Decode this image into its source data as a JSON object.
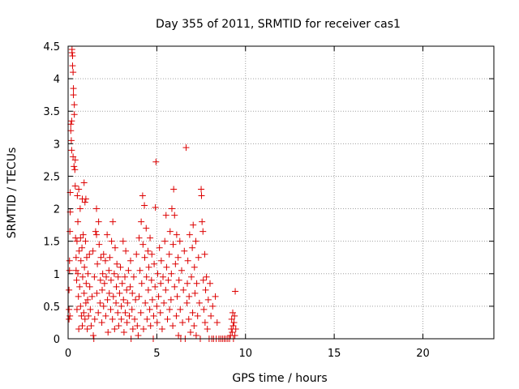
{
  "chart_data": {
    "type": "scatter",
    "title": "Day 355 of 2011, SRMTID for receiver cas1",
    "xlabel": "GPS time / hours",
    "ylabel": "SRMTID / TECUs",
    "xlim": [
      0,
      24
    ],
    "ylim": [
      0,
      4.5
    ],
    "grid": true,
    "marker": "+",
    "colors": {
      "marker": "#dd0000",
      "grid": "#a0a0a0",
      "axes": "#000000"
    },
    "x_ticks": [
      "0",
      "5",
      "10",
      "15",
      "20"
    ],
    "y_ticks": [
      "0",
      "0.5",
      "1",
      "1.5",
      "2",
      "2.5",
      "3",
      "3.5",
      "4",
      "4.5"
    ],
    "series": [
      {
        "name": "SRMTID",
        "points": [
          [
            0.05,
            0.3
          ],
          [
            0.05,
            0.45
          ],
          [
            0.05,
            0.75
          ],
          [
            0.08,
            1.05
          ],
          [
            0.08,
            1.2
          ],
          [
            0.1,
            0.35
          ],
          [
            0.1,
            1.65
          ],
          [
            0.12,
            1.95
          ],
          [
            0.12,
            2.25
          ],
          [
            0.15,
            3.3
          ],
          [
            0.15,
            3.2
          ],
          [
            0.18,
            3.05
          ],
          [
            0.2,
            3.35
          ],
          [
            0.2,
            2.9
          ],
          [
            0.22,
            4.45
          ],
          [
            0.22,
            4.4
          ],
          [
            0.25,
            4.35
          ],
          [
            0.25,
            4.2
          ],
          [
            0.28,
            4.1
          ],
          [
            0.28,
            2.8
          ],
          [
            0.3,
            3.85
          ],
          [
            0.3,
            3.75
          ],
          [
            0.33,
            2.65
          ],
          [
            0.35,
            3.6
          ],
          [
            0.35,
            3.45
          ],
          [
            0.38,
            2.6
          ],
          [
            0.4,
            2.75
          ],
          [
            0.4,
            2.35
          ],
          [
            0.42,
            1.55
          ],
          [
            0.45,
            1.25
          ],
          [
            0.45,
            1.05
          ],
          [
            0.48,
            0.9
          ],
          [
            0.5,
            1.5
          ],
          [
            0.5,
            0.45
          ],
          [
            0.52,
            2.2
          ],
          [
            0.55,
            1.8
          ],
          [
            0.55,
            1.0
          ],
          [
            0.58,
            0.65
          ],
          [
            0.6,
            2.3
          ],
          [
            0.6,
            0.15
          ],
          [
            0.62,
            1.35
          ],
          [
            0.65,
            0.8
          ],
          [
            0.68,
            2.0
          ],
          [
            0.7,
            1.55
          ],
          [
            0.7,
            0.5
          ],
          [
            0.72,
            1.2
          ],
          [
            0.75,
            0.35
          ],
          [
            0.78,
            1.4
          ],
          [
            0.8,
            2.15
          ],
          [
            0.8,
            0.2
          ],
          [
            0.82,
            0.95
          ],
          [
            0.85,
            1.6
          ],
          [
            0.88,
            0.4
          ],
          [
            0.9,
            2.4
          ],
          [
            0.9,
            0.7
          ],
          [
            0.92,
            1.1
          ],
          [
            0.95,
            2.1
          ],
          [
            0.95,
            0.3
          ],
          [
            0.98,
            1.5
          ],
          [
            1.0,
            0.55
          ],
          [
            1.0,
            2.15
          ],
          [
            1.02,
            0.85
          ],
          [
            1.05,
            1.25
          ],
          [
            1.08,
            0.15
          ],
          [
            1.1,
            0.6
          ],
          [
            1.12,
            1.0
          ],
          [
            1.15,
            0.35
          ],
          [
            1.2,
            1.3
          ],
          [
            1.22,
            0.8
          ],
          [
            1.25,
            0.45
          ],
          [
            1.3,
            0.2
          ],
          [
            1.35,
            0.65
          ],
          [
            1.4,
            1.35
          ],
          [
            1.42,
            0.05
          ],
          [
            1.45,
            0.0
          ],
          [
            1.48,
            0.95
          ],
          [
            1.5,
            0.3
          ],
          [
            1.55,
            1.65
          ],
          [
            1.6,
            1.6
          ],
          [
            1.6,
            2.0
          ],
          [
            1.62,
            0.7
          ],
          [
            1.65,
            1.15
          ],
          [
            1.7,
            0.4
          ],
          [
            1.72,
            1.8
          ],
          [
            1.75,
            1.45
          ],
          [
            1.8,
            0.55
          ],
          [
            1.82,
            0.9
          ],
          [
            1.85,
            1.25
          ],
          [
            1.9,
            0.25
          ],
          [
            1.92,
            0.75
          ],
          [
            1.95,
            1.0
          ],
          [
            2.0,
            0.5
          ],
          [
            2.0,
            1.3
          ],
          [
            2.05,
            0.85
          ],
          [
            2.1,
            1.2
          ],
          [
            2.12,
            0.35
          ],
          [
            2.15,
            0.95
          ],
          [
            2.2,
            1.6
          ],
          [
            2.22,
            0.6
          ],
          [
            2.25,
            0.1
          ],
          [
            2.3,
            1.05
          ],
          [
            2.32,
            0.7
          ],
          [
            2.35,
            1.25
          ],
          [
            2.4,
            0.45
          ],
          [
            2.42,
            0.9
          ],
          [
            2.45,
            1.5
          ],
          [
            2.5,
            0.3
          ],
          [
            2.52,
            1.8
          ],
          [
            2.55,
            0.65
          ],
          [
            2.6,
            1.0
          ],
          [
            2.62,
            0.15
          ],
          [
            2.65,
            1.4
          ],
          [
            2.7,
            0.55
          ],
          [
            2.72,
            0.8
          ],
          [
            2.75,
            1.15
          ],
          [
            2.8,
            0.4
          ],
          [
            2.82,
            0.95
          ],
          [
            2.85,
            0.2
          ],
          [
            2.9,
            0.7
          ],
          [
            2.95,
            1.1
          ],
          [
            3.0,
            0.5
          ],
          [
            3.0,
            0.3
          ],
          [
            3.05,
            0.85
          ],
          [
            3.1,
            1.5
          ],
          [
            3.12,
            0.6
          ],
          [
            3.15,
            0.1
          ],
          [
            3.2,
            0.95
          ],
          [
            3.22,
            0.4
          ],
          [
            3.25,
            1.35
          ],
          [
            3.3,
            0.75
          ],
          [
            3.32,
            0.25
          ],
          [
            3.35,
            0.55
          ],
          [
            3.4,
            1.05
          ],
          [
            3.45,
            0.35
          ],
          [
            3.5,
            0.8
          ],
          [
            3.52,
            1.2
          ],
          [
            3.55,
            0.0
          ],
          [
            3.6,
            0.45
          ],
          [
            3.62,
            0.7
          ],
          [
            3.65,
            0.15
          ],
          [
            3.7,
            0.95
          ],
          [
            3.75,
            0.3
          ],
          [
            3.8,
            0.6
          ],
          [
            3.85,
            1.3
          ],
          [
            3.9,
            0.2
          ],
          [
            3.95,
            0.05
          ],
          [
            4.0,
            0.65
          ],
          [
            4.0,
            1.55
          ],
          [
            4.05,
            1.05
          ],
          [
            4.1,
            0.4
          ],
          [
            4.12,
            1.8
          ],
          [
            4.15,
            0.85
          ],
          [
            4.2,
            2.2
          ],
          [
            4.22,
            1.45
          ],
          [
            4.25,
            0.15
          ],
          [
            4.3,
            2.05
          ],
          [
            4.32,
            1.25
          ],
          [
            4.35,
            0.55
          ],
          [
            4.4,
            1.7
          ],
          [
            4.42,
            0.95
          ],
          [
            4.45,
            0.3
          ],
          [
            4.5,
            1.35
          ],
          [
            4.52,
            0.75
          ],
          [
            4.55,
            1.1
          ],
          [
            4.6,
            0.45
          ],
          [
            4.62,
            1.55
          ],
          [
            4.65,
            0.2
          ],
          [
            4.7,
            0.9
          ],
          [
            4.72,
            1.3
          ],
          [
            4.75,
            0.6
          ],
          [
            4.8,
            0.0
          ],
          [
            4.82,
            0.35
          ],
          [
            4.85,
            1.15
          ],
          [
            4.9,
            0.8
          ],
          [
            4.92,
            2.02
          ],
          [
            4.95,
            2.72
          ],
          [
            5.0,
            0.5
          ],
          [
            5.02,
            0.25
          ],
          [
            5.05,
            1.0
          ],
          [
            5.1,
            0.65
          ],
          [
            5.15,
            1.4
          ],
          [
            5.2,
            0.4
          ],
          [
            5.22,
            0.85
          ],
          [
            5.25,
            1.2
          ],
          [
            5.3,
            0.15
          ],
          [
            5.35,
            0.95
          ],
          [
            5.4,
            0.55
          ],
          [
            5.45,
            1.5
          ],
          [
            5.5,
            0.75
          ],
          [
            5.52,
            1.9
          ],
          [
            5.55,
            1.1
          ],
          [
            5.6,
            0.3
          ],
          [
            5.65,
            0.9
          ],
          [
            5.7,
            1.3
          ],
          [
            5.72,
            0.45
          ],
          [
            5.75,
            1.65
          ],
          [
            5.8,
            0.6
          ],
          [
            5.82,
            1.0
          ],
          [
            5.85,
            2.0
          ],
          [
            5.9,
            0.2
          ],
          [
            5.92,
            1.45
          ],
          [
            5.95,
            2.3
          ],
          [
            6.0,
            0.8
          ],
          [
            6.0,
            1.9
          ],
          [
            6.05,
            1.15
          ],
          [
            6.1,
            0.35
          ],
          [
            6.12,
            1.6
          ],
          [
            6.15,
            0.65
          ],
          [
            6.2,
            1.25
          ],
          [
            6.22,
            0.05
          ],
          [
            6.25,
            0.9
          ],
          [
            6.3,
            1.5
          ],
          [
            6.32,
            0.45
          ],
          [
            6.35,
            0.0
          ],
          [
            6.4,
            1.05
          ],
          [
            6.45,
            0.25
          ],
          [
            6.5,
            0.75
          ],
          [
            6.55,
            1.35
          ],
          [
            6.6,
            0.0
          ],
          [
            6.65,
            2.94
          ],
          [
            6.7,
            0.55
          ],
          [
            6.72,
            0.85
          ],
          [
            6.75,
            1.2
          ],
          [
            6.8,
            0.3
          ],
          [
            6.82,
            0.65
          ],
          [
            6.85,
            1.6
          ],
          [
            6.9,
            0.1
          ],
          [
            6.95,
            0.95
          ],
          [
            7.0,
            1.4
          ],
          [
            7.02,
            0.4
          ],
          [
            7.05,
            1.75
          ],
          [
            7.1,
            0.2
          ],
          [
            7.12,
            1.1
          ],
          [
            7.15,
            0.7
          ],
          [
            7.2,
            1.5
          ],
          [
            7.22,
            0.05
          ],
          [
            7.25,
            0.85
          ],
          [
            7.3,
            0.35
          ],
          [
            7.35,
            1.25
          ],
          [
            7.4,
            0.55
          ],
          [
            7.45,
            0.0
          ],
          [
            7.5,
            2.3
          ],
          [
            7.52,
            2.2
          ],
          [
            7.55,
            1.8
          ],
          [
            7.6,
            1.65
          ],
          [
            7.62,
            0.9
          ],
          [
            7.65,
            0.45
          ],
          [
            7.7,
            1.3
          ],
          [
            7.72,
            0.25
          ],
          [
            7.75,
            0.75
          ],
          [
            7.8,
            0.95
          ],
          [
            7.85,
            0.15
          ],
          [
            7.9,
            0.6
          ],
          [
            7.95,
            0.0
          ],
          [
            8.0,
            0.85
          ],
          [
            8.05,
            0.35
          ],
          [
            8.1,
            0.0
          ],
          [
            8.15,
            0.5
          ],
          [
            8.2,
            0.0
          ],
          [
            8.3,
            0.65
          ],
          [
            8.35,
            0.0
          ],
          [
            8.4,
            0.25
          ],
          [
            8.5,
            0.0
          ],
          [
            8.6,
            0.0
          ],
          [
            8.7,
            0.0
          ],
          [
            8.8,
            0.0
          ],
          [
            8.9,
            0.0
          ],
          [
            9.0,
            0.0
          ],
          [
            9.1,
            0.0
          ],
          [
            9.15,
            0.05
          ],
          [
            9.2,
            0.15
          ],
          [
            9.22,
            0.3
          ],
          [
            9.25,
            0.1
          ],
          [
            9.28,
            0.4
          ],
          [
            9.3,
            0.2
          ],
          [
            9.32,
            0.0
          ],
          [
            9.35,
            0.25
          ],
          [
            9.38,
            0.35
          ],
          [
            9.4,
            0.05
          ],
          [
            9.42,
            0.73
          ],
          [
            9.45,
            0.15
          ]
        ]
      }
    ]
  }
}
